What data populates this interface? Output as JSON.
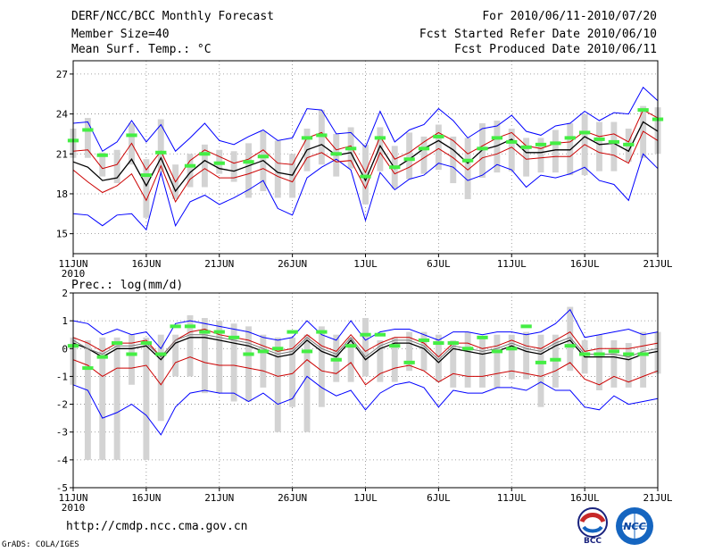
{
  "header": {
    "title": "DERF/NCC/BCC Monthly Forecast",
    "member_size": "Member Size=40",
    "variable1": "Mean Surf. Temp.: °C",
    "period": "For 2010/06/11-2010/07/20",
    "started": "Fcst Started Refer Date 2010/06/10",
    "produced": "Fcst Produced Date 2010/06/11"
  },
  "footer": {
    "url": "http://cmdp.ncc.cma.gov.cn",
    "grads": "GrADS: COLA/IGES",
    "logo1_text": "BCC",
    "logo2_text": "NCC"
  },
  "colors": {
    "envelope": "#0000ff",
    "spread": "#cc0000",
    "mean": "#000000",
    "bar": "#d3d3d3",
    "marker": "#44ee44",
    "grid": "#888888"
  },
  "chart_data": [
    {
      "type": "line",
      "title": "Mean Surf. Temp.: °C",
      "x_tick_labels": [
        "11JUN",
        "16JUN",
        "21JUN",
        "26JUN",
        "1JUL",
        "6JUL",
        "11JUL",
        "16JUL",
        "21JUL"
      ],
      "x_year_label": "2010",
      "ylim": [
        13.5,
        28
      ],
      "yticks": [
        15,
        18,
        21,
        24,
        27
      ],
      "days": 40,
      "series": [
        {
          "name": "max",
          "color": "#0000ff",
          "values": [
            16.5,
            16.4,
            15.6,
            16.4,
            16.5,
            15.3,
            19.6,
            15.6,
            17.4,
            17.9,
            17.2,
            17.7,
            18.3,
            19.0,
            16.9,
            16.4,
            19.2,
            20.0,
            20.6,
            19.8,
            16.0,
            19.6,
            18.3,
            19.1,
            19.4,
            20.3,
            20.0,
            19.0,
            19.4,
            20.2,
            19.8,
            18.5,
            19.4,
            19.2,
            19.5,
            20.0,
            19.0,
            18.7,
            17.5,
            21.0,
            19.9
          ]
        },
        {
          "name": "upper",
          "color": "#0000ff",
          "values": [
            23.3,
            23.4,
            21.2,
            21.9,
            23.5,
            21.9,
            23.2,
            21.2,
            22.2,
            23.3,
            22.0,
            21.7,
            22.3,
            22.8,
            22.0,
            22.2,
            24.4,
            24.3,
            22.5,
            22.6,
            21.5,
            24.2,
            21.9,
            22.8,
            23.2,
            24.4,
            23.5,
            22.2,
            22.9,
            23.1,
            23.9,
            22.7,
            22.4,
            23.1,
            23.3,
            24.2,
            23.5,
            24.1,
            24.0,
            26.0,
            25.0
          ]
        },
        {
          "name": "spread_hi",
          "color": "#cc0000",
          "values": [
            21.2,
            21.3,
            19.9,
            20.2,
            21.8,
            19.8,
            21.2,
            18.9,
            20.5,
            21.3,
            20.8,
            20.3,
            20.6,
            21.3,
            20.3,
            20.2,
            22.2,
            22.6,
            21.3,
            21.6,
            19.6,
            22.3,
            20.6,
            21.1,
            21.9,
            22.6,
            22.0,
            21.0,
            21.6,
            22.2,
            22.6,
            21.6,
            21.4,
            21.8,
            21.9,
            22.7,
            22.3,
            22.5,
            21.9,
            24.3,
            23.7
          ]
        },
        {
          "name": "mean",
          "color": "#000000",
          "values": [
            20.4,
            20.0,
            19.0,
            19.2,
            20.6,
            18.6,
            20.7,
            18.2,
            19.6,
            20.5,
            19.9,
            19.7,
            20.1,
            20.5,
            19.6,
            19.4,
            21.3,
            21.7,
            20.9,
            21.1,
            19.0,
            21.6,
            19.9,
            20.6,
            21.4,
            22.0,
            21.3,
            20.3,
            21.3,
            21.6,
            22.1,
            21.1,
            21.1,
            21.3,
            21.3,
            22.3,
            21.7,
            21.8,
            21.2,
            23.4,
            22.7
          ]
        },
        {
          "name": "spread_lo",
          "color": "#cc0000",
          "values": [
            19.8,
            18.9,
            18.1,
            18.6,
            19.5,
            17.5,
            20.1,
            17.4,
            19.1,
            19.9,
            19.2,
            19.2,
            19.5,
            19.9,
            19.3,
            18.9,
            20.7,
            21.1,
            20.4,
            20.5,
            18.4,
            21.1,
            19.5,
            20.0,
            20.7,
            21.4,
            20.7,
            19.8,
            20.7,
            21.0,
            21.5,
            20.6,
            20.7,
            20.8,
            20.8,
            21.7,
            21.1,
            20.9,
            20.3,
            22.7,
            22.0
          ]
        }
      ],
      "bars": [
        [
          20.7,
          22.9
        ],
        [
          20.7,
          23.7
        ],
        [
          19.3,
          21.1
        ],
        [
          18.8,
          21.3
        ],
        [
          20.2,
          23.3
        ],
        [
          16.2,
          20.6
        ],
        [
          19.6,
          23.6
        ],
        [
          17.6,
          20.2
        ],
        [
          18.5,
          21.0
        ],
        [
          18.5,
          21.7
        ],
        [
          19.5,
          21.3
        ],
        [
          18.9,
          21.2
        ],
        [
          17.7,
          21.8
        ],
        [
          18.2,
          22.7
        ],
        [
          17.7,
          22.0
        ],
        [
          17.7,
          21.0
        ],
        [
          19.7,
          22.9
        ],
        [
          20.2,
          24.3
        ],
        [
          19.3,
          22.5
        ],
        [
          19.9,
          23.0
        ],
        [
          17.2,
          21.7
        ],
        [
          19.7,
          23.0
        ],
        [
          18.4,
          21.6
        ],
        [
          19.1,
          22.6
        ],
        [
          19.5,
          22.3
        ],
        [
          19.8,
          23.2
        ],
        [
          18.8,
          22.3
        ],
        [
          17.6,
          22.2
        ],
        [
          19.2,
          23.3
        ],
        [
          19.6,
          23.5
        ],
        [
          19.7,
          22.9
        ],
        [
          19.3,
          22.2
        ],
        [
          19.6,
          22.2
        ],
        [
          19.6,
          22.8
        ],
        [
          19.4,
          23.3
        ],
        [
          19.4,
          24.0
        ],
        [
          19.7,
          23.4
        ],
        [
          19.7,
          23.4
        ],
        [
          20.4,
          22.9
        ],
        [
          20.7,
          24.6
        ],
        [
          21.0,
          24.5
        ]
      ],
      "markers": [
        22.0,
        22.8,
        20.9,
        null,
        22.4,
        19.4,
        21.1,
        null,
        20.1,
        21.0,
        20.3,
        null,
        20.4,
        20.8,
        null,
        null,
        22.2,
        22.4,
        21.0,
        21.4,
        19.3,
        22.2,
        20.0,
        20.6,
        21.4,
        22.3,
        null,
        20.5,
        21.4,
        22.2,
        21.9,
        21.5,
        21.7,
        21.8,
        22.2,
        22.6,
        22.1,
        21.9,
        21.7,
        24.3,
        23.6
      ]
    },
    {
      "type": "line",
      "title": "Prec.: log(mm/d)",
      "x_tick_labels": [
        "11JUN",
        "16JUN",
        "21JUN",
        "26JUN",
        "1JUL",
        "6JUL",
        "11JUL",
        "16JUL",
        "21JUL"
      ],
      "x_year_label": "2010",
      "ylim": [
        -5,
        2
      ],
      "yticks": [
        -5,
        -4,
        -3,
        -2,
        -1,
        0,
        1,
        2
      ],
      "days": 40,
      "series": [
        {
          "name": "max",
          "color": "#0000ff",
          "values": [
            1.0,
            0.9,
            0.5,
            0.7,
            0.5,
            0.6,
            0.0,
            0.9,
            1.0,
            0.9,
            0.8,
            0.7,
            0.6,
            0.4,
            0.3,
            0.4,
            1.0,
            0.5,
            0.3,
            1.0,
            0.3,
            0.6,
            0.7,
            0.7,
            0.5,
            0.3,
            0.6,
            0.6,
            0.5,
            0.6,
            0.6,
            0.5,
            0.6,
            0.9,
            1.4,
            0.4,
            0.5,
            0.6,
            0.7,
            0.5,
            0.6
          ]
        },
        {
          "name": "min",
          "color": "#0000ff",
          "values": [
            -1.3,
            -1.5,
            -2.5,
            -2.3,
            -2.0,
            -2.4,
            -3.1,
            -2.1,
            -1.6,
            -1.5,
            -1.6,
            -1.6,
            -1.9,
            -1.6,
            -2.0,
            -1.8,
            -1.0,
            -1.4,
            -1.7,
            -1.5,
            -2.2,
            -1.6,
            -1.3,
            -1.2,
            -1.4,
            -2.1,
            -1.5,
            -1.6,
            -1.6,
            -1.4,
            -1.4,
            -1.5,
            -1.2,
            -1.5,
            -1.5,
            -2.1,
            -2.2,
            -1.7,
            -2.0,
            -1.9,
            -1.8
          ]
        },
        {
          "name": "spread_hi",
          "color": "#cc0000",
          "values": [
            0.4,
            0.2,
            -0.1,
            0.2,
            0.2,
            0.3,
            -0.3,
            0.3,
            0.6,
            0.7,
            0.5,
            0.4,
            0.3,
            0.1,
            -0.1,
            0.0,
            0.5,
            0.1,
            -0.1,
            0.5,
            -0.1,
            0.2,
            0.4,
            0.4,
            0.2,
            -0.3,
            0.2,
            0.2,
            0.0,
            0.1,
            0.3,
            0.1,
            0.0,
            0.3,
            0.6,
            -0.1,
            0.0,
            0.0,
            0.0,
            0.1,
            0.2
          ]
        },
        {
          "name": "mean",
          "color": "#000000",
          "values": [
            0.2,
            0.0,
            -0.3,
            0.0,
            0.0,
            0.1,
            -0.4,
            0.2,
            0.4,
            0.4,
            0.3,
            0.2,
            0.1,
            -0.1,
            -0.3,
            -0.2,
            0.3,
            -0.1,
            -0.3,
            0.3,
            -0.4,
            0.0,
            0.2,
            0.2,
            0.0,
            -0.5,
            0.0,
            -0.1,
            -0.2,
            -0.1,
            0.1,
            -0.1,
            -0.2,
            0.1,
            0.3,
            -0.3,
            -0.3,
            -0.3,
            -0.4,
            -0.2,
            -0.1
          ]
        },
        {
          "name": "spread_lo",
          "color": "#cc0000",
          "values": [
            -0.4,
            -0.6,
            -1.0,
            -0.7,
            -0.7,
            -0.6,
            -1.3,
            -0.5,
            -0.3,
            -0.5,
            -0.6,
            -0.6,
            -0.7,
            -0.8,
            -1.0,
            -0.9,
            -0.4,
            -0.8,
            -0.9,
            -0.5,
            -1.3,
            -0.9,
            -0.7,
            -0.6,
            -0.8,
            -1.2,
            -0.9,
            -1.0,
            -1.0,
            -0.9,
            -0.8,
            -0.9,
            -1.0,
            -0.8,
            -0.5,
            -1.1,
            -1.3,
            -1.0,
            -1.2,
            -1.0,
            -0.8
          ]
        },
        {
          "name": "rain",
          "color": "#777777",
          "values": [
            0.3,
            0.0,
            -0.2,
            0.1,
            0.1,
            0.2,
            -0.3,
            0.3,
            0.5,
            0.5,
            0.4,
            0.3,
            0.2,
            0.0,
            -0.2,
            -0.1,
            0.4,
            0.0,
            -0.2,
            0.4,
            -0.3,
            0.1,
            0.3,
            0.3,
            0.1,
            -0.4,
            0.1,
            0.0,
            -0.1,
            0.0,
            0.2,
            0.0,
            -0.1,
            0.2,
            0.4,
            -0.2,
            -0.2,
            -0.2,
            -0.3,
            -0.1,
            0.0
          ]
        }
      ],
      "bars": [
        [
          -1.3,
          0.4
        ],
        [
          -4.0,
          0.3
        ],
        [
          -4.0,
          0.4
        ],
        [
          -4.0,
          0.4
        ],
        [
          -1.3,
          0.5
        ],
        [
          -4.0,
          0.4
        ],
        [
          -2.6,
          0.5
        ],
        [
          -1.0,
          0.5
        ],
        [
          -1.0,
          1.2
        ],
        [
          -1.6,
          1.1
        ],
        [
          -1.6,
          1.0
        ],
        [
          -1.9,
          0.9
        ],
        [
          -1.9,
          0.8
        ],
        [
          -1.4,
          0.5
        ],
        [
          -3.0,
          0.4
        ],
        [
          -2.1,
          0.4
        ],
        [
          -3.0,
          0.5
        ],
        [
          -2.1,
          0.8
        ],
        [
          -1.2,
          0.5
        ],
        [
          -1.2,
          0.4
        ],
        [
          -1.0,
          1.1
        ],
        [
          -1.2,
          0.3
        ],
        [
          -1.2,
          0.4
        ],
        [
          -0.8,
          0.6
        ],
        [
          -0.8,
          0.6
        ],
        [
          -1.2,
          0.5
        ],
        [
          -1.4,
          0.3
        ],
        [
          -1.4,
          0.6
        ],
        [
          -1.4,
          0.4
        ],
        [
          -1.4,
          0.5
        ],
        [
          -1.1,
          0.5
        ],
        [
          -1.1,
          0.6
        ],
        [
          -2.1,
          0.5
        ],
        [
          -1.4,
          0.5
        ],
        [
          -0.8,
          1.5
        ],
        [
          -0.9,
          0.3
        ],
        [
          -1.5,
          0.5
        ],
        [
          -1.4,
          0.3
        ],
        [
          -1.4,
          0.2
        ],
        [
          -1.4,
          0.6
        ],
        [
          -0.9,
          0.6
        ]
      ],
      "markers": [
        0.1,
        -0.7,
        -0.3,
        0.2,
        -0.2,
        0.2,
        -0.2,
        0.8,
        0.8,
        0.6,
        0.6,
        0.4,
        -0.2,
        -0.1,
        0.0,
        0.6,
        -0.1,
        0.6,
        -0.4,
        0.1,
        0.5,
        0.5,
        0.1,
        -0.5,
        0.3,
        0.2,
        0.2,
        0.0,
        0.4,
        -0.1,
        0.0,
        0.8,
        -0.5,
        -0.4,
        0.1,
        -0.2,
        -0.2,
        -0.1,
        -0.2,
        -0.2,
        null
      ]
    }
  ]
}
